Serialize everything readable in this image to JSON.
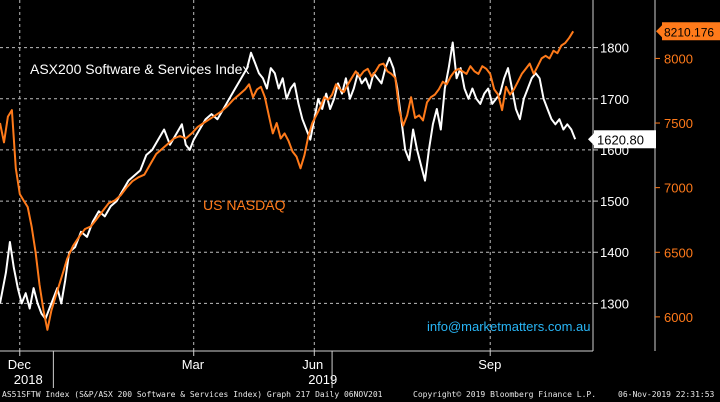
{
  "chart_data": {
    "type": "line",
    "x_ticks": [
      {
        "label": "Dec",
        "year": "2018"
      },
      {
        "label": "Mar",
        "year": ""
      },
      {
        "label": "Jun",
        "year": "2019"
      },
      {
        "label": "Sep",
        "year": ""
      }
    ],
    "x_domain": [
      0,
      300
    ],
    "x_tick_positions": [
      10,
      98,
      159,
      248
    ],
    "x_year_dividers": [
      27,
      168
    ],
    "left_axis": {
      "ticks": [
        1300,
        1400,
        1500,
        1600,
        1700,
        1800
      ],
      "range": [
        1207,
        1893
      ]
    },
    "right_axis": {
      "ticks": [
        6000,
        6500,
        7000,
        7500,
        8000
      ],
      "range": [
        5736,
        8452
      ]
    },
    "series": [
      {
        "name": "ASX200 Software & Services Index",
        "axis": "left",
        "color": "#ffffff",
        "last_value": "1620.80",
        "points": [
          [
            0,
            1300
          ],
          [
            3,
            1360
          ],
          [
            5,
            1420
          ],
          [
            7,
            1370
          ],
          [
            9,
            1330
          ],
          [
            11,
            1300
          ],
          [
            13,
            1320
          ],
          [
            15,
            1290
          ],
          [
            17,
            1330
          ],
          [
            19,
            1300
          ],
          [
            21,
            1280
          ],
          [
            23,
            1270
          ],
          [
            25,
            1290
          ],
          [
            27,
            1310
          ],
          [
            29,
            1330
          ],
          [
            31,
            1300
          ],
          [
            33,
            1345
          ],
          [
            35,
            1400
          ],
          [
            38,
            1410
          ],
          [
            41,
            1440
          ],
          [
            44,
            1430
          ],
          [
            47,
            1460
          ],
          [
            50,
            1480
          ],
          [
            53,
            1470
          ],
          [
            56,
            1490
          ],
          [
            59,
            1500
          ],
          [
            62,
            1520
          ],
          [
            65,
            1540
          ],
          [
            68,
            1550
          ],
          [
            71,
            1560
          ],
          [
            74,
            1590
          ],
          [
            77,
            1600
          ],
          [
            80,
            1620
          ],
          [
            83,
            1640
          ],
          [
            86,
            1610
          ],
          [
            89,
            1630
          ],
          [
            92,
            1650
          ],
          [
            94,
            1610
          ],
          [
            96,
            1600
          ],
          [
            98,
            1620
          ],
          [
            101,
            1640
          ],
          [
            104,
            1660
          ],
          [
            107,
            1670
          ],
          [
            110,
            1660
          ],
          [
            113,
            1680
          ],
          [
            116,
            1700
          ],
          [
            119,
            1720
          ],
          [
            122,
            1740
          ],
          [
            125,
            1760
          ],
          [
            127,
            1790
          ],
          [
            129,
            1770
          ],
          [
            131,
            1750
          ],
          [
            133,
            1740
          ],
          [
            135,
            1720
          ],
          [
            137,
            1760
          ],
          [
            139,
            1750
          ],
          [
            141,
            1720
          ],
          [
            143,
            1740
          ],
          [
            145,
            1700
          ],
          [
            147,
            1720
          ],
          [
            149,
            1730
          ],
          [
            151,
            1690
          ],
          [
            153,
            1660
          ],
          [
            155,
            1640
          ],
          [
            157,
            1620
          ],
          [
            159,
            1660
          ],
          [
            161,
            1700
          ],
          [
            163,
            1680
          ],
          [
            165,
            1710
          ],
          [
            167,
            1680
          ],
          [
            169,
            1700
          ],
          [
            171,
            1730
          ],
          [
            173,
            1710
          ],
          [
            175,
            1740
          ],
          [
            177,
            1700
          ],
          [
            179,
            1720
          ],
          [
            181,
            1750
          ],
          [
            183,
            1730
          ],
          [
            185,
            1740
          ],
          [
            187,
            1720
          ],
          [
            189,
            1750
          ],
          [
            191,
            1740
          ],
          [
            193,
            1730
          ],
          [
            195,
            1760
          ],
          [
            197,
            1780
          ],
          [
            199,
            1760
          ],
          [
            201,
            1720
          ],
          [
            203,
            1660
          ],
          [
            205,
            1600
          ],
          [
            207,
            1580
          ],
          [
            209,
            1640
          ],
          [
            211,
            1600
          ],
          [
            213,
            1570
          ],
          [
            215,
            1540
          ],
          [
            217,
            1600
          ],
          [
            219,
            1650
          ],
          [
            221,
            1680
          ],
          [
            223,
            1640
          ],
          [
            225,
            1720
          ],
          [
            227,
            1760
          ],
          [
            229,
            1810
          ],
          [
            231,
            1740
          ],
          [
            233,
            1760
          ],
          [
            235,
            1720
          ],
          [
            237,
            1700
          ],
          [
            239,
            1720
          ],
          [
            241,
            1700
          ],
          [
            243,
            1690
          ],
          [
            245,
            1710
          ],
          [
            247,
            1720
          ],
          [
            249,
            1690
          ],
          [
            251,
            1700
          ],
          [
            253,
            1710
          ],
          [
            255,
            1740
          ],
          [
            257,
            1760
          ],
          [
            259,
            1720
          ],
          [
            261,
            1680
          ],
          [
            263,
            1660
          ],
          [
            265,
            1700
          ],
          [
            267,
            1720
          ],
          [
            269,
            1740
          ],
          [
            271,
            1750
          ],
          [
            273,
            1740
          ],
          [
            275,
            1700
          ],
          [
            277,
            1680
          ],
          [
            279,
            1660
          ],
          [
            281,
            1650
          ],
          [
            283,
            1660
          ],
          [
            285,
            1640
          ],
          [
            287,
            1650
          ],
          [
            289,
            1640
          ],
          [
            291,
            1620.8
          ]
        ]
      },
      {
        "name": "US NASDAQ",
        "axis": "right",
        "color": "#ff7a1a",
        "last_value": "8210.176",
        "points": [
          [
            0,
            7500
          ],
          [
            2,
            7350
          ],
          [
            4,
            7550
          ],
          [
            6,
            7600
          ],
          [
            8,
            7150
          ],
          [
            10,
            6950
          ],
          [
            12,
            6900
          ],
          [
            14,
            6850
          ],
          [
            16,
            6700
          ],
          [
            18,
            6500
          ],
          [
            20,
            6250
          ],
          [
            22,
            6050
          ],
          [
            24,
            5900
          ],
          [
            26,
            6050
          ],
          [
            28,
            6150
          ],
          [
            30,
            6250
          ],
          [
            32,
            6350
          ],
          [
            34,
            6450
          ],
          [
            37,
            6550
          ],
          [
            40,
            6620
          ],
          [
            43,
            6680
          ],
          [
            46,
            6700
          ],
          [
            49,
            6760
          ],
          [
            52,
            6820
          ],
          [
            55,
            6880
          ],
          [
            58,
            6900
          ],
          [
            61,
            6940
          ],
          [
            64,
            7000
          ],
          [
            67,
            7050
          ],
          [
            70,
            7080
          ],
          [
            73,
            7100
          ],
          [
            76,
            7180
          ],
          [
            79,
            7260
          ],
          [
            82,
            7300
          ],
          [
            85,
            7340
          ],
          [
            88,
            7380
          ],
          [
            91,
            7400
          ],
          [
            94,
            7380
          ],
          [
            97,
            7420
          ],
          [
            100,
            7470
          ],
          [
            103,
            7500
          ],
          [
            106,
            7530
          ],
          [
            109,
            7560
          ],
          [
            112,
            7590
          ],
          [
            115,
            7630
          ],
          [
            118,
            7680
          ],
          [
            121,
            7720
          ],
          [
            124,
            7760
          ],
          [
            126,
            7800
          ],
          [
            128,
            7700
          ],
          [
            130,
            7760
          ],
          [
            132,
            7780
          ],
          [
            134,
            7700
          ],
          [
            136,
            7560
          ],
          [
            138,
            7420
          ],
          [
            140,
            7500
          ],
          [
            142,
            7380
          ],
          [
            144,
            7420
          ],
          [
            146,
            7360
          ],
          [
            148,
            7280
          ],
          [
            150,
            7240
          ],
          [
            152,
            7150
          ],
          [
            154,
            7250
          ],
          [
            156,
            7400
          ],
          [
            158,
            7500
          ],
          [
            160,
            7560
          ],
          [
            162,
            7620
          ],
          [
            164,
            7700
          ],
          [
            166,
            7680
          ],
          [
            168,
            7720
          ],
          [
            170,
            7800
          ],
          [
            172,
            7760
          ],
          [
            174,
            7740
          ],
          [
            176,
            7800
          ],
          [
            178,
            7850
          ],
          [
            180,
            7900
          ],
          [
            182,
            7860
          ],
          [
            184,
            7900
          ],
          [
            186,
            7920
          ],
          [
            188,
            7860
          ],
          [
            190,
            7900
          ],
          [
            192,
            7950
          ],
          [
            194,
            7960
          ],
          [
            196,
            7900
          ],
          [
            198,
            7880
          ],
          [
            200,
            7850
          ],
          [
            202,
            7600
          ],
          [
            204,
            7480
          ],
          [
            206,
            7560
          ],
          [
            208,
            7700
          ],
          [
            210,
            7540
          ],
          [
            212,
            7560
          ],
          [
            214,
            7520
          ],
          [
            216,
            7660
          ],
          [
            218,
            7700
          ],
          [
            220,
            7720
          ],
          [
            222,
            7760
          ],
          [
            224,
            7820
          ],
          [
            226,
            7800
          ],
          [
            228,
            7860
          ],
          [
            230,
            7900
          ],
          [
            232,
            7920
          ],
          [
            234,
            7900
          ],
          [
            236,
            7880
          ],
          [
            238,
            7940
          ],
          [
            240,
            7900
          ],
          [
            242,
            7880
          ],
          [
            244,
            7940
          ],
          [
            246,
            7920
          ],
          [
            248,
            7880
          ],
          [
            250,
            7760
          ],
          [
            252,
            7720
          ],
          [
            254,
            7600
          ],
          [
            256,
            7780
          ],
          [
            258,
            7720
          ],
          [
            260,
            7760
          ],
          [
            262,
            7820
          ],
          [
            264,
            7880
          ],
          [
            266,
            7920
          ],
          [
            268,
            7960
          ],
          [
            270,
            7880
          ],
          [
            272,
            7940
          ],
          [
            274,
            8000
          ],
          [
            276,
            8020
          ],
          [
            278,
            8000
          ],
          [
            280,
            8060
          ],
          [
            282,
            8040
          ],
          [
            284,
            8100
          ],
          [
            286,
            8120
          ],
          [
            288,
            8160
          ],
          [
            290,
            8210.176
          ]
        ]
      }
    ],
    "annotations": [
      {
        "text": "ASX200 Software & Services Index",
        "color": "#ffffff"
      },
      {
        "text": "US NASDAQ",
        "color": "#ff7a1a"
      },
      {
        "text": "info@marketmatters.com.au",
        "color": "#29b6f6"
      }
    ],
    "grid": true,
    "grid_style": "dashed-white"
  },
  "footer": {
    "left": "AS51SFTW Index (S&P/ASX 200 Software & Services Index) Graph 217  Daily 06NOV201",
    "middle": "Copyright© 2019 Bloomberg Finance L.P.",
    "right": "06-Nov-2019 22:31:53"
  },
  "colors": {
    "background": "#000000",
    "white_line": "#ffffff",
    "orange_line": "#ff7a1a",
    "email": "#29b6f6"
  }
}
